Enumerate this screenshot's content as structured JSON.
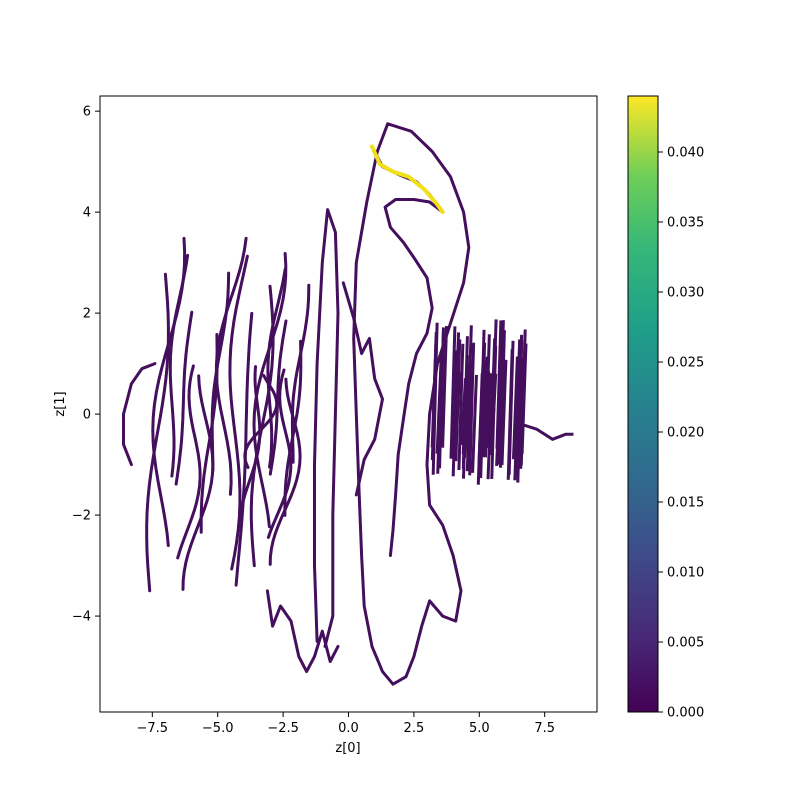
{
  "chart_data": {
    "type": "scatter",
    "title": "",
    "xlabel": "z[0]",
    "ylabel": "z[1]",
    "xlim": [
      -9.5,
      9.5
    ],
    "ylim": [
      -5.9,
      6.3
    ],
    "xticks": [
      -7.5,
      -5.0,
      -2.5,
      0.0,
      2.5,
      5.0,
      7.5
    ],
    "xtick_labels": [
      "−7.5",
      "−5.0",
      "−2.5",
      "0.0",
      "2.5",
      "5.0",
      "7.5"
    ],
    "yticks": [
      -4,
      -2,
      0,
      2,
      4,
      6
    ],
    "ytick_labels": [
      "−4",
      "−2",
      "0",
      "2",
      "4",
      "6"
    ],
    "grid": false,
    "colorbar": {
      "colormap": "viridis",
      "range": [
        0.0,
        0.044
      ],
      "ticks": [
        0.0,
        0.005,
        0.01,
        0.015,
        0.02,
        0.025,
        0.03,
        0.035,
        0.04
      ],
      "tick_labels": [
        "0.000",
        "0.005",
        "0.010",
        "0.015",
        "0.020",
        "0.025",
        "0.030",
        "0.035",
        "0.040"
      ]
    },
    "point_color": "#440f5c",
    "highlight_color": "#f0e01a",
    "structures": [
      {
        "name": "central-loop",
        "value": 0.004,
        "points": [
          [
            1.5,
            5.75
          ],
          [
            2.4,
            5.6
          ],
          [
            3.2,
            5.2
          ],
          [
            3.9,
            4.7
          ],
          [
            4.4,
            4.0
          ],
          [
            4.6,
            3.3
          ],
          [
            4.4,
            2.6
          ],
          [
            3.9,
            1.8
          ],
          [
            3.4,
            1.0
          ],
          [
            3.1,
            0.0
          ],
          [
            3.0,
            -1.0
          ],
          [
            3.1,
            -1.8
          ],
          [
            3.6,
            -2.2
          ],
          [
            4.0,
            -2.8
          ],
          [
            4.3,
            -3.5
          ],
          [
            4.1,
            -4.1
          ],
          [
            3.6,
            -4.0
          ],
          [
            3.1,
            -3.7
          ],
          [
            2.8,
            -4.2
          ],
          [
            2.5,
            -4.8
          ],
          [
            2.2,
            -5.2
          ],
          [
            1.7,
            -5.35
          ],
          [
            1.3,
            -5.1
          ],
          [
            0.9,
            -4.6
          ],
          [
            0.6,
            -3.8
          ],
          [
            0.5,
            -2.8
          ],
          [
            0.4,
            -1.5
          ],
          [
            0.3,
            0.0
          ],
          [
            0.2,
            1.5
          ],
          [
            0.3,
            3.0
          ],
          [
            0.7,
            4.2
          ],
          [
            1.1,
            5.2
          ],
          [
            1.5,
            5.75
          ]
        ]
      },
      {
        "name": "inner-curve",
        "value": 0.006,
        "points": [
          [
            0.9,
            5.3
          ],
          [
            1.3,
            4.9
          ],
          [
            1.9,
            4.75
          ],
          [
            2.6,
            4.6
          ],
          [
            3.1,
            4.35
          ],
          [
            3.6,
            4.0
          ],
          [
            3.1,
            4.2
          ],
          [
            2.5,
            4.25
          ],
          [
            1.8,
            4.25
          ],
          [
            1.4,
            4.1
          ],
          [
            1.6,
            3.7
          ],
          [
            2.1,
            3.4
          ],
          [
            2.5,
            3.1
          ],
          [
            3.0,
            2.7
          ],
          [
            3.2,
            2.1
          ],
          [
            3.0,
            1.6
          ],
          [
            2.6,
            1.2
          ],
          [
            2.3,
            0.6
          ],
          [
            2.1,
            -0.1
          ],
          [
            1.9,
            -0.8
          ],
          [
            1.8,
            -1.6
          ],
          [
            1.7,
            -2.3
          ],
          [
            1.6,
            -2.8
          ]
        ]
      },
      {
        "name": "yellow-highlight",
        "value": 0.04,
        "points": [
          [
            0.9,
            5.3
          ],
          [
            1.2,
            4.95
          ],
          [
            1.7,
            4.8
          ],
          [
            2.3,
            4.7
          ],
          [
            2.9,
            4.45
          ],
          [
            3.4,
            4.15
          ],
          [
            3.6,
            4.0
          ]
        ]
      },
      {
        "name": "left-arc",
        "value": 0.004,
        "points": [
          [
            -7.4,
            1.0
          ],
          [
            -7.9,
            0.9
          ],
          [
            -8.3,
            0.6
          ],
          [
            -8.6,
            0.0
          ],
          [
            -8.6,
            -0.6
          ],
          [
            -8.3,
            -1.0
          ]
        ]
      },
      {
        "name": "central-spike",
        "value": 0.004,
        "points": [
          [
            -1.2,
            -4.5
          ],
          [
            -1.3,
            -3.0
          ],
          [
            -1.3,
            -1.0
          ],
          [
            -1.2,
            1.0
          ],
          [
            -1.0,
            3.0
          ],
          [
            -0.8,
            4.05
          ],
          [
            -0.5,
            3.6
          ],
          [
            -0.4,
            2.0
          ],
          [
            -0.5,
            0.0
          ],
          [
            -0.6,
            -2.0
          ],
          [
            -0.6,
            -4.0
          ],
          [
            -0.9,
            -4.6
          ]
        ]
      },
      {
        "name": "lower-lobes",
        "value": 0.004,
        "points": [
          [
            -3.1,
            -3.5
          ],
          [
            -2.9,
            -4.2
          ],
          [
            -2.6,
            -3.8
          ],
          [
            -2.2,
            -4.1
          ],
          [
            -1.9,
            -4.8
          ],
          [
            -1.6,
            -5.1
          ],
          [
            -1.3,
            -4.8
          ],
          [
            -1.0,
            -4.3
          ],
          [
            -0.7,
            -4.9
          ],
          [
            -0.4,
            -4.6
          ]
        ]
      },
      {
        "name": "upper-fringe",
        "value": 0.004,
        "points": [
          [
            -0.2,
            2.6
          ],
          [
            0.2,
            1.9
          ],
          [
            0.5,
            1.2
          ],
          [
            0.8,
            1.5
          ],
          [
            1.0,
            0.7
          ],
          [
            1.3,
            0.3
          ],
          [
            1.0,
            -0.5
          ],
          [
            0.6,
            -0.9
          ],
          [
            0.3,
            -1.6
          ]
        ]
      }
    ],
    "fringe_bands": [
      {
        "name": "left-bands",
        "x_range": [
          -7.0,
          -3.0
        ],
        "y_range": [
          -3.5,
          3.5
        ],
        "count": 13,
        "value": 0.004
      },
      {
        "name": "mid-bands",
        "x_range": [
          -3.0,
          -1.6
        ],
        "y_range": [
          -3.0,
          3.2
        ],
        "count": 8,
        "value": 0.004
      }
    ],
    "dense_cluster": {
      "name": "right-cluster",
      "x_range": [
        3.2,
        6.8
      ],
      "y_range": [
        -1.4,
        1.9
      ],
      "value": 0.004
    },
    "right-tail": {
      "value": 0.004,
      "points": [
        [
          6.6,
          -0.2
        ],
        [
          7.2,
          -0.3
        ],
        [
          7.8,
          -0.5
        ],
        [
          8.3,
          -0.4
        ],
        [
          8.6,
          -0.4
        ]
      ]
    }
  }
}
